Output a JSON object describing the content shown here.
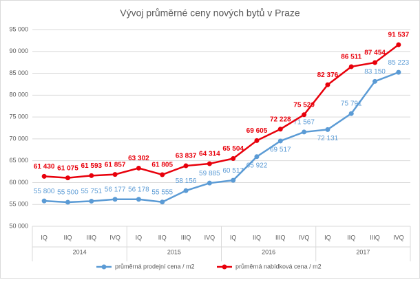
{
  "chart_data": {
    "type": "line",
    "title": "Vývoj průměrné ceny nových bytů v Praze",
    "categories": [
      "IQ",
      "IIQ",
      "IIIQ",
      "IVQ",
      "IQ",
      "IIQ",
      "IIIQ",
      "IVQ",
      "IQ",
      "IIQ",
      "IIIQ",
      "IVQ",
      "IQ",
      "IIQ",
      "IIIQ",
      "IVQ"
    ],
    "category_groups": [
      "2014",
      "2015",
      "2016",
      "2017"
    ],
    "series": [
      {
        "name": "průměrná prodejní cena / m2",
        "color": "#5b9bd5",
        "values": [
          55800,
          55500,
          55751,
          56177,
          56178,
          55555,
          58156,
          59885,
          60517,
          65922,
          69517,
          71567,
          72131,
          75791,
          83150,
          85223
        ],
        "value_labels": [
          "55 800",
          "55 500",
          "55 751",
          "56 177",
          "56 178",
          "55 555",
          "58 156",
          "59 885",
          "60 517",
          "65 922",
          "69 517",
          "71 567",
          "72 131",
          "75 791",
          "83 150",
          "85 223"
        ]
      },
      {
        "name": "průměrná nabídková cena / m2",
        "color": "#e8000b",
        "values": [
          61430,
          61075,
          61593,
          61857,
          63302,
          61805,
          63837,
          64314,
          65504,
          69605,
          72228,
          75520,
          82376,
          86511,
          87454,
          91537
        ],
        "value_labels": [
          "61 430",
          "61 075",
          "61 593",
          "61 857",
          "63 302",
          "61 805",
          "63 837",
          "64 314",
          "65 504",
          "69 605",
          "72 228",
          "75 520",
          "82 376",
          "86 511",
          "87 454",
          "91 537"
        ]
      }
    ],
    "ylim": [
      50000,
      95000
    ],
    "yticks": [
      {
        "value": 50000,
        "label": "50 000"
      },
      {
        "value": 55000,
        "label": "55 000"
      },
      {
        "value": 60000,
        "label": "60 000"
      },
      {
        "value": 65000,
        "label": "65 000"
      },
      {
        "value": 70000,
        "label": "70 000"
      },
      {
        "value": 75000,
        "label": "75 000"
      },
      {
        "value": 80000,
        "label": "80 000"
      },
      {
        "value": 85000,
        "label": "85 000"
      },
      {
        "value": 90000,
        "label": "90 000"
      },
      {
        "value": 95000,
        "label": "95 000"
      }
    ],
    "grid": true,
    "legend": "bottom"
  }
}
